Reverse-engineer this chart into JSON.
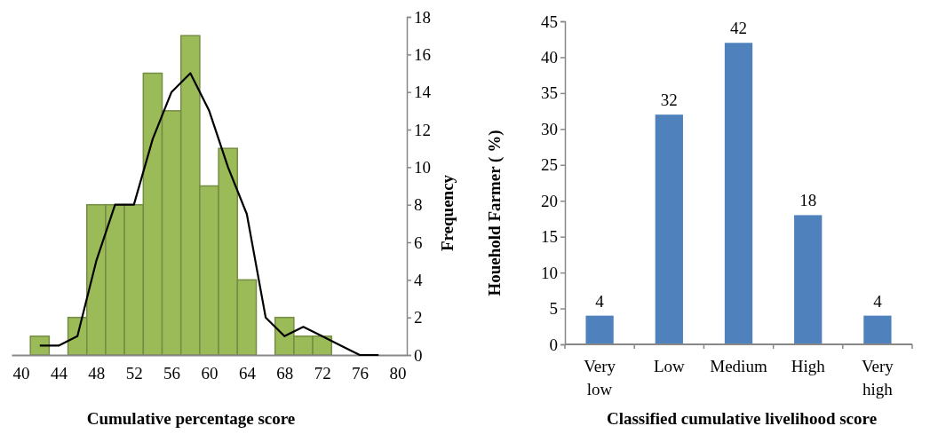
{
  "chart_data": [
    {
      "type": "histogram",
      "xlabel": "Cumulative percentage score",
      "ylabel": "Frequency",
      "xlim": [
        39,
        81
      ],
      "xticks": [
        40,
        44,
        48,
        52,
        56,
        60,
        64,
        68,
        72,
        76,
        80
      ],
      "ylim": [
        0,
        18
      ],
      "yticks": [
        0,
        2,
        4,
        6,
        8,
        10,
        12,
        14,
        16,
        18
      ],
      "grid": false,
      "series": [
        {
          "type": "histogram",
          "color": "#9bbb59",
          "bins": [
            41,
            43,
            45,
            47,
            49,
            51,
            53,
            55,
            57,
            59,
            61,
            63,
            65,
            67,
            69,
            71,
            73
          ],
          "values": [
            1,
            0,
            2,
            8,
            8,
            8,
            15,
            13,
            17,
            9,
            11,
            4,
            0,
            2,
            1,
            1
          ]
        },
        {
          "type": "line",
          "color": "#000000",
          "line_style": "solid",
          "marker": "none",
          "x": [
            42,
            44,
            46,
            48,
            50,
            52,
            54,
            56,
            58,
            60,
            62,
            64,
            66,
            68,
            70,
            72,
            74,
            76,
            78
          ],
          "values": [
            0.5,
            0.5,
            1,
            5,
            8,
            8,
            11.5,
            14,
            15,
            13,
            10,
            7.5,
            2,
            1,
            1.5,
            1,
            0.5,
            0,
            0
          ]
        }
      ]
    },
    {
      "type": "bar",
      "xlabel": "Classified cumulative livelihood score",
      "ylabel": "Houehold Farmer ( %)",
      "categories": [
        "Very low",
        "Low",
        "Medium",
        "High",
        "Very high"
      ],
      "values": [
        4,
        32,
        42,
        18,
        4
      ],
      "color": "#4f81bd",
      "data_labels": true,
      "ylim": [
        0,
        45
      ],
      "yticks": [
        0,
        5,
        10,
        15,
        20,
        25,
        30,
        35,
        40,
        45
      ],
      "grid": false
    }
  ]
}
